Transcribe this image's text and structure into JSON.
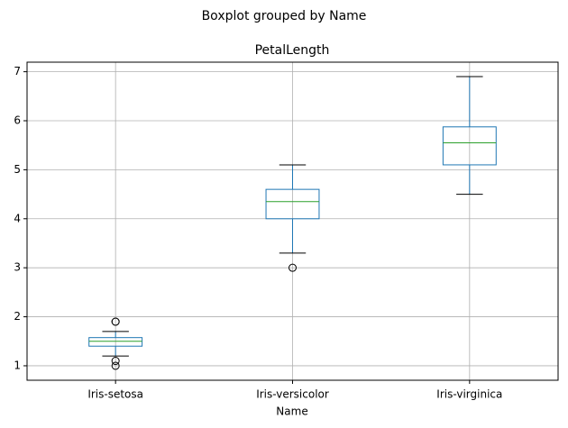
{
  "chart_data": {
    "type": "box",
    "suptitle": "Boxplot grouped by Name",
    "title": "PetalLength",
    "x_label": "Name",
    "categories": [
      "Iris-setosa",
      "Iris-versicolor",
      "Iris-virginica"
    ],
    "boxes": [
      {
        "whislo": 1.2,
        "q1": 1.4,
        "med": 1.5,
        "q3": 1.575,
        "whishi": 1.7,
        "fliers": [
          1.0,
          1.1,
          1.9,
          1.9
        ]
      },
      {
        "whislo": 3.3,
        "q1": 4.0,
        "med": 4.35,
        "q3": 4.6,
        "whishi": 5.1,
        "fliers": [
          3.0
        ]
      },
      {
        "whislo": 4.5,
        "q1": 5.1,
        "med": 5.55,
        "q3": 5.875,
        "whishi": 6.9,
        "fliers": []
      }
    ],
    "box_color": "#1f77b4",
    "median_color": "#2ca02c",
    "cap_color": "#000000",
    "flier_color": "#000000",
    "ylim": [
      0.705,
      7.195
    ],
    "yticks": [
      1,
      2,
      3,
      4,
      5,
      6,
      7
    ],
    "grid": true
  }
}
